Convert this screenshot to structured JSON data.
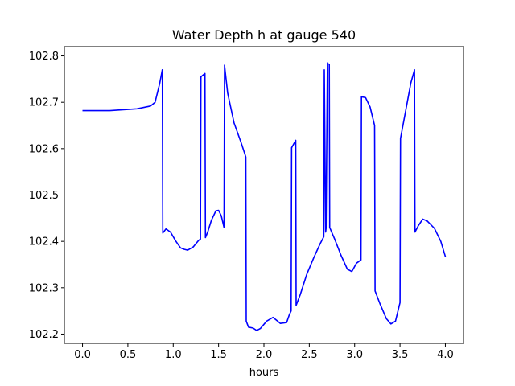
{
  "chart_data": {
    "type": "line",
    "title": "Water Depth h at gauge 540",
    "xlabel": "hours",
    "ylabel": "",
    "xlim": [
      -0.2,
      4.2
    ],
    "ylim": [
      102.18,
      102.82
    ],
    "xticks": [
      0.0,
      0.5,
      1.0,
      1.5,
      2.0,
      2.5,
      3.0,
      3.5,
      4.0
    ],
    "xtick_labels": [
      "0.0",
      "0.5",
      "1.0",
      "1.5",
      "2.0",
      "2.5",
      "3.0",
      "3.5",
      "4.0"
    ],
    "yticks": [
      102.2,
      102.3,
      102.4,
      102.5,
      102.6,
      102.7,
      102.8
    ],
    "ytick_labels": [
      "102.2",
      "102.3",
      "102.4",
      "102.5",
      "102.6",
      "102.7",
      "102.8"
    ],
    "grid": false,
    "series": [
      {
        "color": "#0000ff",
        "x": [
          0.0,
          0.3,
          0.6,
          0.75,
          0.8,
          0.85,
          0.88,
          0.885,
          0.92,
          0.97,
          1.03,
          1.08,
          1.12,
          1.16,
          1.22,
          1.28,
          1.3,
          1.305,
          1.35,
          1.355,
          1.38,
          1.42,
          1.47,
          1.5,
          1.53,
          1.56,
          1.565,
          1.6,
          1.67,
          1.75,
          1.8,
          1.805,
          1.83,
          1.88,
          1.92,
          1.96,
          2.03,
          2.1,
          2.15,
          2.18,
          2.25,
          2.28,
          2.3,
          2.305,
          2.35,
          2.355,
          2.4,
          2.47,
          2.55,
          2.62,
          2.66,
          2.665,
          2.68,
          2.685,
          2.7,
          2.705,
          2.72,
          2.725,
          2.78,
          2.85,
          2.92,
          2.97,
          3.02,
          3.07,
          3.075,
          3.12,
          3.17,
          3.22,
          3.225,
          3.28,
          3.35,
          3.4,
          3.45,
          3.5,
          3.505,
          3.58,
          3.62,
          3.66,
          3.665,
          3.7,
          3.75,
          3.8,
          3.88,
          3.95,
          4.0
        ],
        "y": [
          102.682,
          102.682,
          102.686,
          102.692,
          102.7,
          102.74,
          102.77,
          102.418,
          102.427,
          102.42,
          102.4,
          102.386,
          102.383,
          102.381,
          102.388,
          102.402,
          102.405,
          102.755,
          102.762,
          102.408,
          102.42,
          102.445,
          102.466,
          102.467,
          102.455,
          102.43,
          102.78,
          102.72,
          102.656,
          102.612,
          102.582,
          102.228,
          102.215,
          102.213,
          102.208,
          102.212,
          102.228,
          102.236,
          102.228,
          102.223,
          102.225,
          102.242,
          102.25,
          102.602,
          102.618,
          102.262,
          102.285,
          102.328,
          102.365,
          102.395,
          102.41,
          102.77,
          102.42,
          102.428,
          102.785,
          102.783,
          102.782,
          102.43,
          102.405,
          102.37,
          102.34,
          102.335,
          102.353,
          102.36,
          102.712,
          102.71,
          102.69,
          102.65,
          102.293,
          102.265,
          102.233,
          102.222,
          102.228,
          102.268,
          102.622,
          102.7,
          102.742,
          102.77,
          102.42,
          102.433,
          102.448,
          102.444,
          102.428,
          102.4,
          102.367
        ]
      }
    ]
  }
}
